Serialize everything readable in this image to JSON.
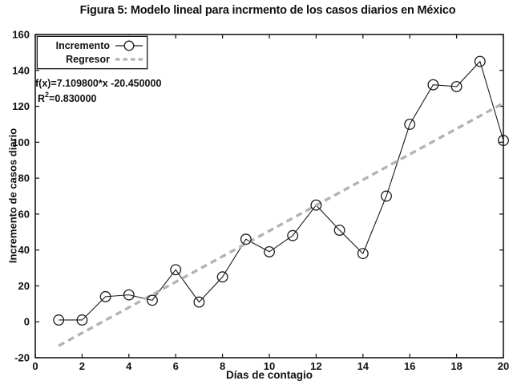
{
  "chart_data": {
    "type": "line",
    "title": "Figura 5: Modelo lineal para incrmento de los casos diarios en México",
    "xlabel": "Días de contagio",
    "ylabel": "Incremento de casos diario",
    "xlim": [
      0,
      20
    ],
    "ylim": [
      -20,
      160
    ],
    "xticks": [
      0,
      2,
      4,
      6,
      8,
      10,
      12,
      14,
      16,
      18,
      20
    ],
    "yticks": [
      -20,
      0,
      20,
      40,
      60,
      80,
      100,
      120,
      140,
      160
    ],
    "grid": false,
    "legend_position": "top-left",
    "axis_color": "#1a1a1a",
    "x": [
      1,
      2,
      3,
      4,
      5,
      6,
      7,
      8,
      9,
      10,
      11,
      12,
      13,
      14,
      15,
      16,
      17,
      18,
      19,
      20
    ],
    "series": [
      {
        "name": "Incremento",
        "style": "solid-line-circle-markers",
        "color": "#1a1a1a",
        "values": [
          1,
          1,
          14,
          15,
          12,
          29,
          11,
          25,
          46,
          39,
          48,
          65,
          51,
          38,
          70,
          110,
          132,
          131,
          145,
          101
        ]
      },
      {
        "name": "Regresor",
        "style": "thick-dashed-line",
        "color": "#b3b3b3",
        "slope": 7.1098,
        "intercept": -20.45,
        "x_range": [
          1,
          20
        ]
      }
    ],
    "annotation": {
      "line1": "f(x)=7.109800*x -20.450000",
      "r_base": "R",
      "r_sup": "2",
      "r_rest": "=0.830000"
    }
  },
  "legend": {
    "items": [
      {
        "label": "Incremento"
      },
      {
        "label": "Regresor"
      }
    ]
  }
}
